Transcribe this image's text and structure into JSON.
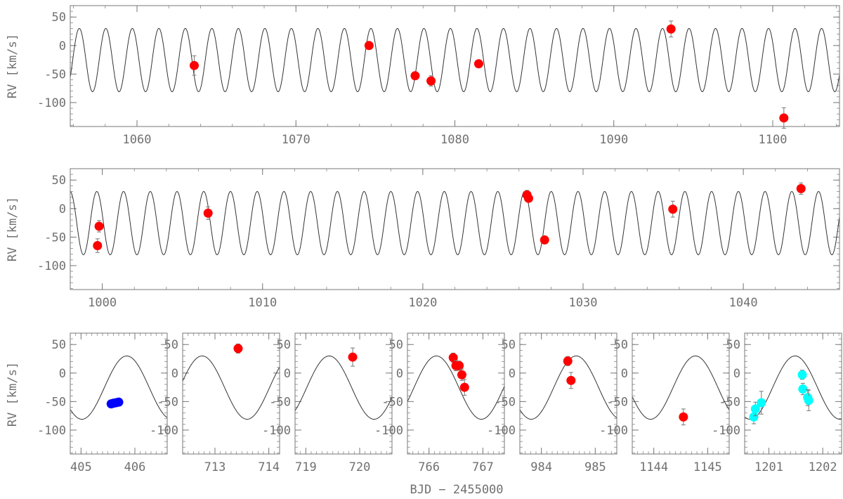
{
  "figure": {
    "ylabel": "RV [km/s]",
    "xlabel": "BJD − 2455000"
  },
  "model": {
    "period": 1.668,
    "phase_x": 1056.37,
    "gamma": -25.5,
    "K": 55.5
  },
  "chart_data": [
    {
      "type": "scatter",
      "panel": "top",
      "xlim": [
        1055.8,
        1104.2
      ],
      "ylim": [
        -142,
        70
      ],
      "x_ticks": [
        1060,
        1070,
        1080,
        1090,
        1100
      ],
      "y_ticks": [
        50,
        0,
        -50,
        -100
      ],
      "series": [
        {
          "color": "#ff0000",
          "points": [
            [
              1063.6,
              -35
            ],
            [
              1074.6,
              0
            ],
            [
              1077.5,
              -53
            ],
            [
              1078.5,
              -62
            ],
            [
              1081.5,
              -32
            ],
            [
              1093.6,
              29
            ],
            [
              1100.7,
              -127
            ]
          ],
          "errors": [
            17,
            6,
            5,
            9,
            5,
            14,
            18
          ]
        }
      ]
    },
    {
      "type": "scatter",
      "panel": "middle",
      "xlim": [
        998.0,
        1046.0
      ],
      "ylim": [
        -142,
        70
      ],
      "x_ticks": [
        1000,
        1010,
        1020,
        1030,
        1040
      ],
      "y_ticks": [
        50,
        0,
        -50,
        -100
      ],
      "series": [
        {
          "color": "#ff0000",
          "points": [
            [
              999.8,
              -31
            ],
            [
              999.7,
              -65
            ],
            [
              1006.6,
              -8
            ],
            [
              1026.5,
              24
            ],
            [
              1026.6,
              18
            ],
            [
              1027.6,
              -55
            ],
            [
              1035.6,
              -1
            ],
            [
              1043.6,
              35
            ]
          ],
          "errors": [
            10,
            12,
            11,
            8,
            6,
            5,
            14,
            10
          ]
        }
      ]
    },
    {
      "type": "scatter",
      "panel": "bottom-1",
      "xlim": [
        404.8,
        406.6
      ],
      "ylim": [
        -142,
        70
      ],
      "x_ticks": [
        405,
        406
      ],
      "y_ticks": [
        50,
        0,
        -50,
        -100
      ],
      "series": [
        {
          "color": "#0000ff",
          "points": [
            [
              405.56,
              -54
            ],
            [
              405.6,
              -53
            ],
            [
              405.65,
              -52
            ],
            [
              405.7,
              -51
            ]
          ],
          "errors": [
            4,
            4,
            4,
            4
          ]
        }
      ]
    },
    {
      "type": "scatter",
      "panel": "bottom-2",
      "xlim": [
        712.4,
        714.2
      ],
      "ylim": [
        -142,
        70
      ],
      "x_ticks": [
        713,
        714
      ],
      "y_ticks": [
        50,
        0,
        -50,
        -100
      ],
      "series": [
        {
          "color": "#ff0000",
          "points": [
            [
              713.43,
              43
            ]
          ],
          "errors": [
            8
          ]
        }
      ]
    },
    {
      "type": "scatter",
      "panel": "bottom-3",
      "xlim": [
        718.8,
        720.6
      ],
      "ylim": [
        -142,
        70
      ],
      "x_ticks": [
        719,
        720
      ],
      "y_ticks": [
        50,
        0,
        -50,
        -100
      ],
      "series": [
        {
          "color": "#ff0000",
          "points": [
            [
              719.87,
              28
            ]
          ],
          "errors": [
            16
          ]
        }
      ]
    },
    {
      "type": "scatter",
      "panel": "bottom-4",
      "xlim": [
        765.6,
        767.4
      ],
      "ylim": [
        -142,
        70
      ],
      "x_ticks": [
        766,
        767
      ],
      "y_ticks": [
        50,
        0,
        -50,
        -100
      ],
      "series": [
        {
          "color": "#ff0000",
          "points": [
            [
              766.45,
              27
            ],
            [
              766.5,
              13
            ],
            [
              766.56,
              13
            ],
            [
              766.61,
              -3
            ],
            [
              766.66,
              -25
            ]
          ],
          "errors": [
            8,
            9,
            8,
            10,
            14
          ]
        }
      ]
    },
    {
      "type": "scatter",
      "panel": "bottom-5",
      "xlim": [
        983.6,
        985.4
      ],
      "ylim": [
        -142,
        70
      ],
      "x_ticks": [
        984,
        985
      ],
      "y_ticks": [
        50,
        0,
        -50,
        -100
      ],
      "series": [
        {
          "color": "#ff0000",
          "points": [
            [
              984.49,
              21
            ],
            [
              984.55,
              -13
            ]
          ],
          "errors": [
            8,
            14
          ]
        }
      ]
    },
    {
      "type": "scatter",
      "panel": "bottom-6",
      "xlim": [
        1143.6,
        1145.4
      ],
      "ylim": [
        -142,
        70
      ],
      "x_ticks": [
        1144,
        1145
      ],
      "y_ticks": [
        50,
        0,
        -50,
        -100
      ],
      "series": [
        {
          "color": "#ff0000",
          "points": [
            [
              1144.55,
              -77
            ]
          ],
          "errors": [
            14
          ]
        }
      ]
    },
    {
      "type": "scatter",
      "panel": "bottom-7",
      "xlim": [
        1200.55,
        1202.35
      ],
      "ylim": [
        -142,
        70
      ],
      "x_ticks": [
        1201,
        1202
      ],
      "y_ticks": [
        50,
        0,
        -50,
        -100
      ],
      "series": [
        {
          "color": "#00ffff",
          "points": [
            [
              1200.72,
              -77
            ],
            [
              1200.75,
              -63
            ],
            [
              1200.86,
              -52
            ],
            [
              1201.62,
              -3
            ],
            [
              1201.63,
              -28
            ],
            [
              1201.72,
              -43
            ],
            [
              1201.74,
              -48
            ]
          ],
          "errors": [
            12,
            12,
            20,
            8,
            10,
            14,
            18
          ]
        }
      ]
    }
  ]
}
